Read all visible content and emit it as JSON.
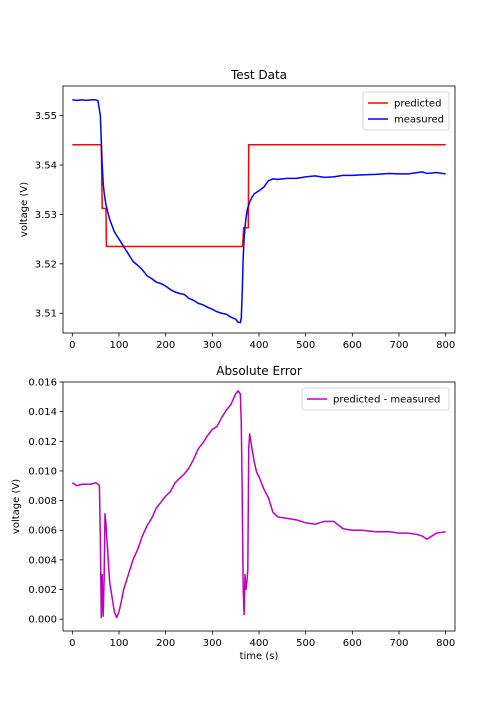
{
  "chart_data": [
    {
      "type": "line",
      "title": "Test Data",
      "xlabel": "",
      "ylabel": "voltage (V)",
      "xlim": [
        -20,
        820
      ],
      "ylim": [
        3.506,
        3.556
      ],
      "xticks": [
        0,
        100,
        200,
        300,
        400,
        500,
        600,
        700,
        800
      ],
      "yticks": [
        3.51,
        3.52,
        3.53,
        3.54,
        3.55
      ],
      "ytick_labels": [
        "3.51",
        "3.52",
        "3.53",
        "3.54",
        "3.55"
      ],
      "grid": false,
      "legend_position": "upper right",
      "series": [
        {
          "name": "predicted",
          "color": "#ff0000",
          "x": [
            0,
            62,
            64,
            72,
            73,
            365,
            367,
            377,
            378,
            800
          ],
          "y": [
            3.5441,
            3.5441,
            3.5312,
            3.5312,
            3.5235,
            3.5235,
            3.5273,
            3.5273,
            3.5441,
            3.5441
          ]
        },
        {
          "name": "measured",
          "color": "#0000ff",
          "x": [
            0,
            10,
            20,
            30,
            40,
            50,
            55,
            60,
            62,
            64,
            66,
            68,
            72,
            80,
            90,
            100,
            110,
            120,
            130,
            140,
            150,
            160,
            170,
            180,
            190,
            200,
            210,
            220,
            230,
            240,
            250,
            260,
            270,
            280,
            290,
            300,
            310,
            320,
            330,
            340,
            350,
            355,
            360,
            362,
            364,
            366,
            368,
            370,
            372,
            375,
            380,
            385,
            390,
            400,
            410,
            420,
            430,
            440,
            460,
            480,
            500,
            520,
            540,
            560,
            580,
            600,
            620,
            650,
            680,
            700,
            720,
            740,
            750,
            760,
            780,
            800
          ],
          "y": [
            3.5532,
            3.5531,
            3.5532,
            3.5531,
            3.5532,
            3.5532,
            3.553,
            3.55,
            3.545,
            3.54,
            3.5365,
            3.5345,
            3.532,
            3.529,
            3.5265,
            3.525,
            3.5235,
            3.522,
            3.5205,
            3.5197,
            3.5188,
            3.5176,
            3.517,
            3.5163,
            3.516,
            3.5155,
            3.5148,
            3.5143,
            3.514,
            3.5138,
            3.513,
            3.5126,
            3.512,
            3.5117,
            3.5112,
            3.5108,
            3.5103,
            3.51,
            3.5098,
            3.5092,
            3.5088,
            3.5082,
            3.5081,
            3.509,
            3.514,
            3.521,
            3.525,
            3.5275,
            3.5292,
            3.531,
            3.5325,
            3.5335,
            3.5342,
            3.5348,
            3.5355,
            3.5368,
            3.5372,
            3.5371,
            3.5373,
            3.5373,
            3.5376,
            3.5378,
            3.5375,
            3.5376,
            3.5379,
            3.5379,
            3.538,
            3.5381,
            3.5383,
            3.5382,
            3.5382,
            3.5385,
            3.5386,
            3.5383,
            3.5385,
            3.5382
          ]
        }
      ]
    },
    {
      "type": "line",
      "title": "Absolute Error",
      "xlabel": "time (s)",
      "ylabel": "voltage (V)",
      "xlim": [
        -20,
        820
      ],
      "ylim": [
        -0.0008,
        0.016
      ],
      "xticks": [
        0,
        100,
        200,
        300,
        400,
        500,
        600,
        700,
        800
      ],
      "yticks": [
        0,
        0.002,
        0.004,
        0.006,
        0.008,
        0.01,
        0.012,
        0.014,
        0.016
      ],
      "ytick_labels": [
        "0.000",
        "0.002",
        "0.004",
        "0.006",
        "0.008",
        "0.010",
        "0.012",
        "0.014",
        "0.016"
      ],
      "grid": false,
      "legend_position": "upper right",
      "series": [
        {
          "name": "predicted - measured",
          "color": "#bf00bf",
          "x": [
            0,
            5,
            10,
            20,
            30,
            40,
            50,
            55,
            58,
            60,
            62,
            64,
            66,
            68,
            70,
            72,
            74,
            76,
            80,
            85,
            90,
            95,
            100,
            105,
            110,
            120,
            130,
            140,
            150,
            160,
            170,
            180,
            190,
            200,
            210,
            220,
            230,
            240,
            250,
            260,
            270,
            280,
            290,
            300,
            310,
            320,
            330,
            340,
            350,
            355,
            360,
            362,
            364,
            366,
            368,
            370,
            372,
            374,
            376,
            378,
            380,
            385,
            390,
            395,
            400,
            410,
            420,
            430,
            440,
            460,
            480,
            500,
            520,
            540,
            560,
            580,
            600,
            620,
            650,
            680,
            700,
            720,
            740,
            750,
            760,
            780,
            800
          ],
          "y": [
            0.0092,
            0.0091,
            0.009,
            0.0091,
            0.0091,
            0.0091,
            0.0092,
            0.0091,
            0.009,
            0.0055,
            0.0001,
            0.003,
            0.0002,
            0.0025,
            0.0071,
            0.0065,
            0.0054,
            0.0045,
            0.0025,
            0.0015,
            0.0005,
            0.0001,
            0.0005,
            0.0012,
            0.002,
            0.003,
            0.004,
            0.0047,
            0.0056,
            0.0063,
            0.0068,
            0.0075,
            0.0079,
            0.0083,
            0.0086,
            0.0092,
            0.0095,
            0.0098,
            0.0102,
            0.0108,
            0.0115,
            0.0119,
            0.0124,
            0.0128,
            0.013,
            0.0136,
            0.0141,
            0.0145,
            0.0152,
            0.0154,
            0.0152,
            0.0133,
            0.0085,
            0.0023,
            0.0003,
            0.003,
            0.002,
            0.0025,
            0.0033,
            0.0115,
            0.0125,
            0.0115,
            0.0106,
            0.0099,
            0.0096,
            0.0088,
            0.0082,
            0.0072,
            0.0069,
            0.0068,
            0.0067,
            0.0065,
            0.0064,
            0.0066,
            0.0066,
            0.0061,
            0.006,
            0.006,
            0.0059,
            0.0059,
            0.0058,
            0.0058,
            0.0057,
            0.0056,
            0.0054,
            0.0058,
            0.0059
          ]
        }
      ]
    }
  ]
}
